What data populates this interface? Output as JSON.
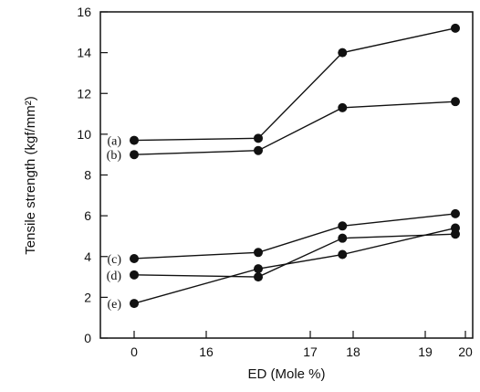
{
  "chart_data": {
    "type": "line",
    "xlabel": "ED (Mole %)",
    "ylabel": "Tensile strength (kgf/mm²)",
    "ylim": [
      0,
      16
    ],
    "y_ticks": [
      "0",
      "2",
      "4",
      "6",
      "8",
      "10",
      "12",
      "14",
      "16"
    ],
    "x_ticks": [
      "0",
      "16",
      "17",
      "18",
      "19",
      "20"
    ],
    "x_positions": [
      "0",
      "16.5",
      "17.75",
      "19.75"
    ],
    "grid": false,
    "legend": "none",
    "series": [
      {
        "name": "(a)",
        "values": [
          9.7,
          9.8,
          14.0,
          15.2
        ]
      },
      {
        "name": "(b)",
        "values": [
          9.0,
          9.2,
          11.3,
          11.6
        ]
      },
      {
        "name": "(c)",
        "values": [
          3.9,
          4.2,
          5.5,
          6.1
        ]
      },
      {
        "name": "(d)",
        "values": [
          3.1,
          3.0,
          4.9,
          5.1
        ]
      },
      {
        "name": "(e)",
        "values": [
          1.7,
          3.4,
          4.1,
          5.4
        ]
      }
    ]
  }
}
